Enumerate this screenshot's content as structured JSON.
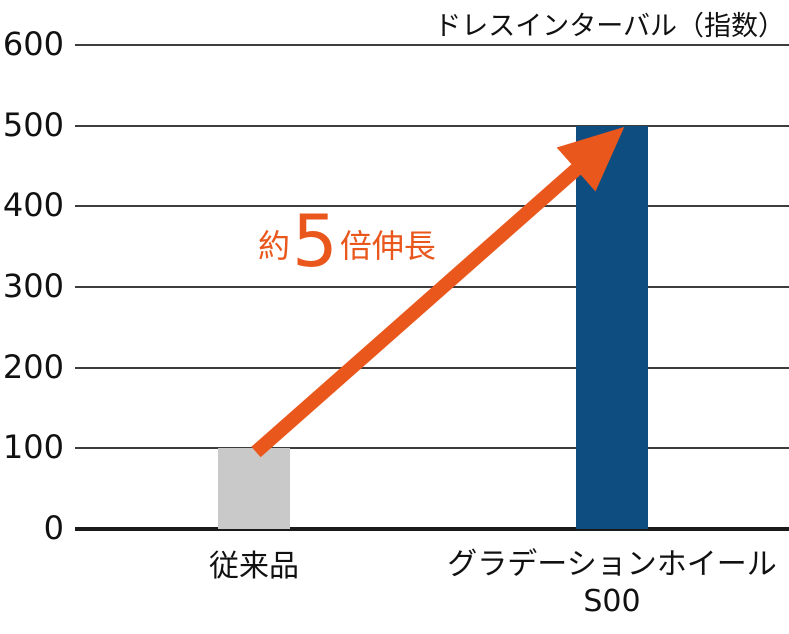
{
  "chart_data": {
    "type": "bar",
    "title": "ドレスインターバル（指数）",
    "xlabel": "",
    "ylabel": "",
    "ylim": [
      0,
      600
    ],
    "yticks": [
      600,
      500,
      400,
      300,
      200,
      100,
      0
    ],
    "grid": true,
    "legend": "none",
    "categories": [
      "従来品",
      "グラデーションホイール S00"
    ],
    "values": [
      100,
      500
    ],
    "bars": [
      {
        "label": "従来品",
        "sublabel": "",
        "value": 100,
        "color": "#c9c9ca"
      },
      {
        "label": "グラデーションホイール",
        "sublabel": "S00",
        "value": 500,
        "color": "#0e4d80"
      }
    ],
    "annotation": {
      "text": "約5倍伸長",
      "prefix": "約",
      "big": "5",
      "suffix": "倍伸長",
      "color": "#ea571d"
    },
    "colors": {
      "grid": "#3d3d3d",
      "axis": "#1a1a1a",
      "text": "#111111",
      "arrow": "#ea571d"
    }
  }
}
